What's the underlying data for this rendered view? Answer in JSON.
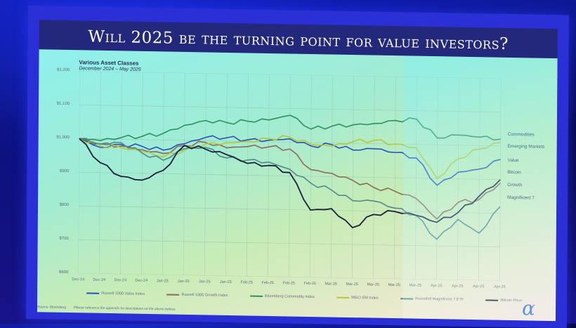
{
  "slide": {
    "title": "Will 2025 be the turning point for value investors?",
    "source": "Source: Bloomberg",
    "note": "Please reference the appendix for descriptions on the above indices.",
    "logo_glyph": "α"
  },
  "chart_data": {
    "type": "line",
    "title": "Various Asset Classes",
    "subtitle": "December 2024 – May 2025",
    "xlabel": "",
    "ylabel": "",
    "ylim": [
      600,
      1200
    ],
    "yticks": [
      "$600",
      "$700",
      "$800",
      "$900",
      "$1,000",
      "$1,100",
      "$1,200"
    ],
    "grid": true,
    "legend_position": "bottom",
    "x_tick_labels": [
      "Dec-24",
      "Dec-24",
      "Dec-24",
      "Dec-24",
      "Jan-25",
      "Jan-25",
      "Jan-25",
      "Jan-25",
      "Feb-25",
      "Feb-25",
      "Feb-25",
      "Feb-25",
      "Mar-25",
      "Mar-25",
      "Mar-25",
      "Mar-25",
      "Mar-25",
      "Apr-25",
      "Apr-25",
      "Apr-25",
      "Apr-25"
    ],
    "x": [
      "Dec-24",
      "Dec-24",
      "Dec-24",
      "Dec-24",
      "Jan-25",
      "Jan-25",
      "Jan-25",
      "Jan-25",
      "Feb-25",
      "Feb-25",
      "Feb-25",
      "Feb-25",
      "Mar-25",
      "Mar-25",
      "Mar-25",
      "Mar-25",
      "Mar-25",
      "Apr-25",
      "Apr-25",
      "Apr-25",
      "Apr-25"
    ],
    "series": [
      {
        "name": "Russell 1000 Value Index",
        "end_label": "Value",
        "color": "#2b4fb8",
        "values": [
          1000,
          975,
          985,
          980,
          970,
          990,
          1010,
          1010,
          1005,
          1005,
          1010,
          990,
          995,
          980,
          985,
          975,
          960,
          880,
          920,
          930,
          960
        ]
      },
      {
        "name": "Russell 1000 Growth Index",
        "end_label": "Growth",
        "color": "#8a6a55",
        "values": [
          1000,
          985,
          980,
          970,
          960,
          985,
          995,
          980,
          985,
          985,
          980,
          920,
          910,
          890,
          870,
          860,
          840,
          780,
          830,
          840,
          890
        ]
      },
      {
        "name": "Bloomberg Commodity Index",
        "end_label": "Commodities",
        "color": "#2e8f5f",
        "values": [
          1000,
          995,
          1005,
          1010,
          1020,
          1045,
          1060,
          1055,
          1060,
          1065,
          1080,
          1040,
          1050,
          1055,
          1060,
          1070,
          1075,
          1020,
          1030,
          1025,
          1020
        ]
      },
      {
        "name": "MSCI EM Index",
        "end_label": "Emerging Markets",
        "color": "#b9c63a",
        "values": [
          1000,
          980,
          975,
          965,
          950,
          970,
          990,
          995,
          1000,
          1010,
          1015,
          995,
          990,
          1005,
          1010,
          1000,
          990,
          900,
          960,
          990,
          1010
        ]
      },
      {
        "name": "Roundhill Magnificent 7 ETF",
        "end_label": "Magnificent 7",
        "color": "#4f8a8a",
        "values": [
          1000,
          985,
          990,
          960,
          940,
          975,
          980,
          950,
          945,
          940,
          920,
          880,
          860,
          830,
          830,
          810,
          790,
          720,
          780,
          740,
          820
        ]
      },
      {
        "name": "Bitcoin Price",
        "end_label": "Bitcoin",
        "color": "#1a1f3a",
        "values": [
          1000,
          930,
          890,
          880,
          910,
          985,
          975,
          960,
          935,
          930,
          910,
          800,
          805,
          750,
          790,
          800,
          790,
          770,
          800,
          850,
          900
        ]
      }
    ]
  }
}
